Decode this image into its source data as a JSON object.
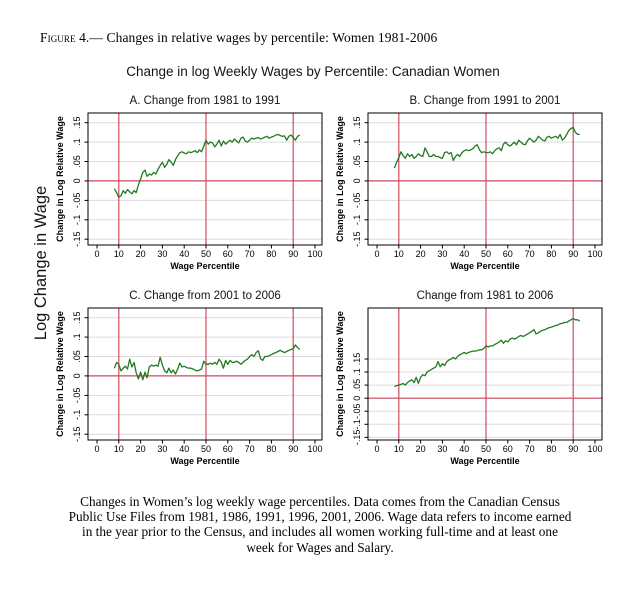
{
  "heading": {
    "label": "Figure 4.—",
    "text": " Changes in relative wages by percentile: Women 1981-2006"
  },
  "caption": {
    "lines": [
      "Changes in Women’s log weekly wage percentiles. Data comes from the Canadian Census",
      "Public Use Files from 1981, 1986, 1991, 1996, 2001, 2006. Wage data refers to income earned",
      "in the year prior to the Census, and includes all women working full-time and at least one",
      "week for Wages and Salary."
    ]
  },
  "chart_data": {
    "type": "line",
    "title": "Change in log Weekly Wages by Percentile: Canadian Women",
    "outer_ylabel": "Log Change in Wage",
    "xlabel": "Wage Percentile",
    "ylabel": "Change in Log Relative Wage",
    "x_start": 8,
    "x_ticks": [
      0,
      10,
      20,
      30,
      40,
      50,
      60,
      70,
      80,
      90,
      100
    ],
    "y_tick_values": [
      0.15,
      0.1,
      0.05,
      0,
      -0.05,
      -0.1,
      -0.15
    ],
    "y_tick_labels": [
      ".15",
      ".1",
      ".05",
      "0",
      "-.05",
      "-.1",
      "-.15"
    ],
    "ref_lines_x": [
      10,
      50,
      90
    ],
    "ref_line_y": 0,
    "grid": true,
    "legend": "none",
    "colors": {
      "line": "#227a22",
      "reference": "#d04a5e",
      "grid": "#dcdcdc",
      "frame": "#000000"
    },
    "panels": [
      {
        "id": "a",
        "title": "A. Change from 1981 to 1991",
        "ymin": -0.165,
        "ymax": 0.175,
        "values": [
          -0.02,
          -0.03,
          -0.042,
          -0.038,
          -0.025,
          -0.032,
          -0.022,
          -0.028,
          -0.033,
          -0.025,
          -0.03,
          -0.01,
          0.005,
          0.022,
          0.028,
          0.012,
          0.018,
          0.015,
          0.022,
          0.018,
          0.03,
          0.04,
          0.048,
          0.035,
          0.043,
          0.055,
          0.048,
          0.04,
          0.055,
          0.065,
          0.073,
          0.075,
          0.072,
          0.07,
          0.075,
          0.073,
          0.075,
          0.078,
          0.073,
          0.08,
          0.075,
          0.09,
          0.105,
          0.095,
          0.1,
          0.098,
          0.088,
          0.095,
          0.105,
          0.09,
          0.103,
          0.095,
          0.1,
          0.105,
          0.1,
          0.108,
          0.103,
          0.098,
          0.11,
          0.113,
          0.103,
          0.1,
          0.105,
          0.11,
          0.108,
          0.11,
          0.112,
          0.108,
          0.11,
          0.113,
          0.115,
          0.11,
          0.113,
          0.115,
          0.118,
          0.12,
          0.117,
          0.115,
          0.116,
          0.105,
          0.115,
          0.118,
          0.112,
          0.105,
          0.115,
          0.118
        ]
      },
      {
        "id": "b",
        "title": "B. Change from 1991 to 2001",
        "ymin": -0.165,
        "ymax": 0.175,
        "values": [
          0.033,
          0.048,
          0.06,
          0.075,
          0.065,
          0.058,
          0.07,
          0.063,
          0.068,
          0.058,
          0.063,
          0.07,
          0.065,
          0.063,
          0.085,
          0.075,
          0.063,
          0.063,
          0.068,
          0.063,
          0.063,
          0.06,
          0.058,
          0.073,
          0.075,
          0.07,
          0.073,
          0.053,
          0.063,
          0.068,
          0.063,
          0.073,
          0.078,
          0.08,
          0.078,
          0.08,
          0.083,
          0.09,
          0.093,
          0.08,
          0.073,
          0.075,
          0.073,
          0.073,
          0.075,
          0.07,
          0.078,
          0.083,
          0.085,
          0.078,
          0.095,
          0.1,
          0.093,
          0.09,
          0.095,
          0.1,
          0.093,
          0.105,
          0.1,
          0.095,
          0.093,
          0.103,
          0.11,
          0.105,
          0.1,
          0.105,
          0.115,
          0.11,
          0.105,
          0.103,
          0.113,
          0.115,
          0.11,
          0.113,
          0.115,
          0.11,
          0.12,
          0.105,
          0.11,
          0.12,
          0.13,
          0.135,
          0.138,
          0.125,
          0.12,
          0.12
        ]
      },
      {
        "id": "c",
        "title": "C. Change from 2001 to 2006",
        "ymin": -0.165,
        "ymax": 0.175,
        "values": [
          0.02,
          0.035,
          0.03,
          0.013,
          0.02,
          0.025,
          0.018,
          0.043,
          0.023,
          0.035,
          0.008,
          -0.008,
          0.01,
          -0.01,
          0.01,
          -0.005,
          0.023,
          0.028,
          0.025,
          0.028,
          0.025,
          0.048,
          0.028,
          0.013,
          0.008,
          0.02,
          0.008,
          0.015,
          0.005,
          0.018,
          0.033,
          0.023,
          0.025,
          0.022,
          0.02,
          0.02,
          0.018,
          0.015,
          0.013,
          0.015,
          0.018,
          0.038,
          0.03,
          0.03,
          0.033,
          0.03,
          0.035,
          0.03,
          0.043,
          0.035,
          0.02,
          0.04,
          0.03,
          0.04,
          0.035,
          0.035,
          0.038,
          0.035,
          0.03,
          0.035,
          0.04,
          0.043,
          0.05,
          0.055,
          0.05,
          0.06,
          0.065,
          0.045,
          0.04,
          0.05,
          0.05,
          0.052,
          0.055,
          0.058,
          0.06,
          0.063,
          0.066,
          0.063,
          0.06,
          0.063,
          0.066,
          0.068,
          0.07,
          0.08,
          0.073,
          0.068
        ]
      },
      {
        "id": "d",
        "title": "Change from 1981 to 2006",
        "ymin": -0.16,
        "ymax": 0.345,
        "values": [
          0.045,
          0.048,
          0.05,
          0.053,
          0.056,
          0.05,
          0.06,
          0.066,
          0.07,
          0.06,
          0.08,
          0.057,
          0.08,
          0.09,
          0.086,
          0.1,
          0.105,
          0.11,
          0.115,
          0.12,
          0.14,
          0.12,
          0.132,
          0.125,
          0.14,
          0.146,
          0.15,
          0.156,
          0.15,
          0.16,
          0.166,
          0.17,
          0.175,
          0.17,
          0.175,
          0.178,
          0.18,
          0.18,
          0.182,
          0.185,
          0.185,
          0.19,
          0.2,
          0.196,
          0.2,
          0.2,
          0.205,
          0.21,
          0.215,
          0.222,
          0.21,
          0.22,
          0.215,
          0.226,
          0.23,
          0.226,
          0.23,
          0.236,
          0.24,
          0.236,
          0.24,
          0.245,
          0.25,
          0.256,
          0.262,
          0.246,
          0.25,
          0.256,
          0.26,
          0.262,
          0.266,
          0.27,
          0.272,
          0.275,
          0.278,
          0.28,
          0.285,
          0.286,
          0.29,
          0.29,
          0.295,
          0.3,
          0.305,
          0.3,
          0.3,
          0.295
        ]
      }
    ]
  }
}
